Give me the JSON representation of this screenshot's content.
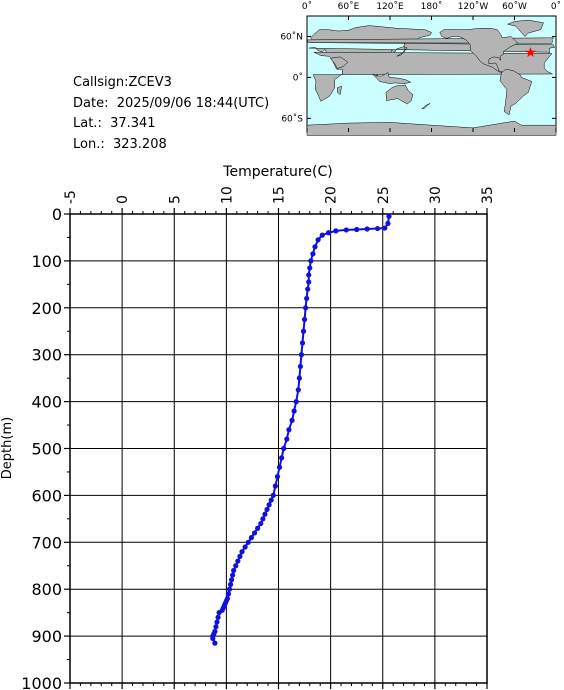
{
  "info": {
    "callsign": "Callsign:ZCEV3",
    "date": "Date:  2025/09/06 18:44(UTC)",
    "lat": "Lat.:  37.341",
    "lon": "Lon.:  323.208"
  },
  "map": {
    "lon_ticks": [
      "0˚",
      "60˚E",
      "120˚E",
      "180˚",
      "120˚W",
      "60˚W",
      "0˚"
    ],
    "lat_ticks": [
      "60˚N",
      "0˚",
      "60˚S"
    ],
    "station_lon": 323.208,
    "station_lat": 37.341,
    "ocean_color": "#ccffff",
    "land_color": "#b4b4b4",
    "marker_color": "#ff0000"
  },
  "chart_data": {
    "type": "line",
    "xlabel": "Temperature(C)",
    "ylabel": "Depth(m)",
    "xlim": [
      -5,
      35
    ],
    "ylim": [
      1000,
      0
    ],
    "x_ticks": [
      -5,
      0,
      5,
      10,
      15,
      20,
      25,
      30,
      35
    ],
    "y_ticks": [
      0,
      100,
      200,
      300,
      400,
      500,
      600,
      700,
      800,
      900,
      1000
    ],
    "grid": true,
    "line_color": "#1010e0",
    "series": [
      {
        "x": [
          25.6,
          25.5,
          25.2,
          24.5,
          23.5,
          22.5,
          21.5,
          20.5,
          19.8,
          19.2,
          18.8,
          18.5,
          18.3,
          18.1,
          18.0,
          17.9,
          17.9,
          17.8,
          17.7,
          17.6,
          17.5,
          17.4,
          17.3,
          17.2,
          17.1,
          17.0,
          16.9,
          16.7,
          16.5,
          16.3,
          16.0,
          15.8,
          15.5,
          15.3,
          15.1,
          14.9,
          14.7,
          14.5,
          14.3,
          14.1,
          13.9,
          13.7,
          13.5,
          13.3,
          13.0,
          12.7,
          12.4,
          12.1,
          11.8,
          11.5,
          11.3,
          11.1,
          10.9,
          10.7,
          10.6,
          10.5,
          10.4,
          10.3,
          10.2,
          10.1,
          10.0,
          9.9,
          9.8,
          9.7,
          9.6,
          9.3,
          9.2,
          9.1,
          9.0,
          8.9,
          8.8,
          8.7,
          8.7,
          8.9
        ],
        "y": [
          5,
          20,
          30,
          31,
          32,
          33,
          34,
          36,
          40,
          45,
          55,
          70,
          85,
          100,
          115,
          130,
          145,
          160,
          180,
          200,
          225,
          250,
          275,
          300,
          325,
          350,
          375,
          400,
          420,
          440,
          460,
          480,
          500,
          520,
          540,
          560,
          580,
          600,
          610,
          620,
          630,
          640,
          650,
          660,
          670,
          680,
          690,
          700,
          710,
          720,
          730,
          740,
          750,
          760,
          770,
          780,
          790,
          800,
          810,
          820,
          825,
          830,
          835,
          840,
          845,
          850,
          860,
          870,
          880,
          890,
          895,
          900,
          905,
          915
        ]
      }
    ]
  }
}
